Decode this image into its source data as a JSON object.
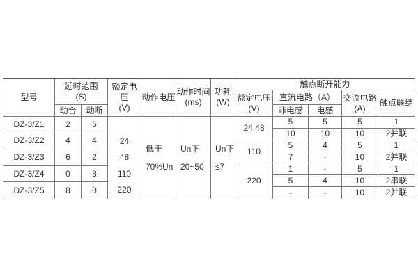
{
  "left": {
    "h": {
      "model": "型号",
      "delay": "延时范围\n(S)",
      "close": "动合",
      "open": "动断",
      "voltage": "额定电压\n(V)",
      "op_voltage": "动作电压",
      "op_time": "动作时间\n(ms)",
      "power": "功耗\n(W)"
    },
    "rows": [
      {
        "model": "DZ-3/Z1",
        "close": "2",
        "open": "6"
      },
      {
        "model": "DZ-3/Z2",
        "close": "4",
        "open": "4"
      },
      {
        "model": "DZ-3/Z3",
        "close": "6",
        "open": "2"
      },
      {
        "model": "DZ-3/Z4",
        "close": "0",
        "open": "8"
      },
      {
        "model": "DZ-3/Z5",
        "close": "8",
        "open": "0"
      }
    ],
    "voltage_values": "24\n48\n110\n220",
    "op_voltage_value": "低于\n70%Un",
    "op_time_value": "Un下\n20~50",
    "power_value": "Un下\n≤7"
  },
  "right": {
    "title": "触点断开能力",
    "h": {
      "voltage": "额定电压\n(V)",
      "dc": "直流电路（A）",
      "non_inductive": "非电感",
      "inductive": "电感",
      "ac": "交流电路\n(A)",
      "connection": "触点联结"
    },
    "groups": [
      {
        "voltage": "24,48"
      },
      {
        "voltage": "110"
      },
      {
        "voltage": "220"
      }
    ],
    "rows": [
      [
        "5",
        "5",
        "5",
        "1"
      ],
      [
        "10",
        "10",
        "10",
        "2并联"
      ],
      [
        "5",
        "4",
        "5",
        "1"
      ],
      [
        "7",
        "-",
        "10",
        "2并联"
      ],
      [
        "1",
        "-",
        "5",
        "1"
      ],
      [
        "5",
        "4",
        "10",
        "2串联"
      ],
      [
        "-",
        "-",
        "10",
        "2并联"
      ]
    ]
  }
}
